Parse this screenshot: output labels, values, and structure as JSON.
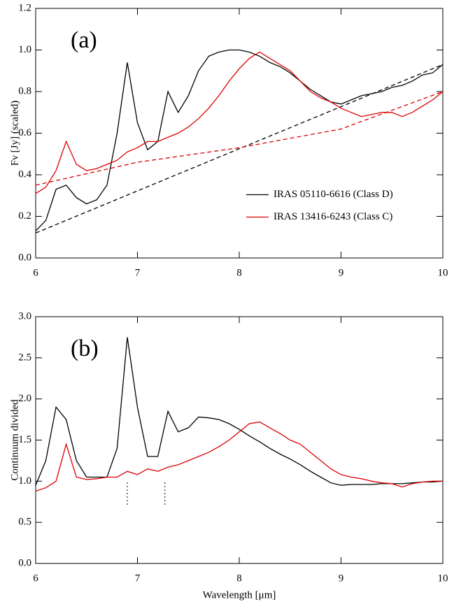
{
  "chart_data": [
    {
      "type": "line",
      "panel_label": "(a)",
      "ylabel": "Fν [Jy] (scaled)",
      "xlim": [
        6,
        10
      ],
      "xticks": [
        6,
        7,
        8,
        9,
        10
      ],
      "ylim": [
        0,
        1.2
      ],
      "yticks": [
        {
          "value": 0,
          "label": "0.0"
        },
        0.2,
        0.4,
        0.6,
        0.8,
        {
          "value": 1,
          "label": "1.0"
        },
        1.2
      ],
      "legend": "center right",
      "x": [
        6.0,
        6.1,
        6.2,
        6.3,
        6.4,
        6.5,
        6.6,
        6.7,
        6.8,
        6.9,
        7.0,
        7.1,
        7.2,
        7.3,
        7.4,
        7.5,
        7.6,
        7.7,
        7.8,
        7.9,
        8.0,
        8.1,
        8.2,
        8.3,
        8.4,
        8.5,
        8.6,
        8.7,
        8.8,
        8.9,
        9.0,
        9.1,
        9.2,
        9.3,
        9.4,
        9.5,
        9.6,
        9.7,
        9.8,
        9.9,
        10.0
      ],
      "series": [
        {
          "name": "IRAS 05110-6616 (Class D)",
          "color": "#000000",
          "values": [
            0.13,
            0.18,
            0.33,
            0.35,
            0.29,
            0.26,
            0.28,
            0.35,
            0.6,
            0.94,
            0.65,
            0.52,
            0.56,
            0.8,
            0.7,
            0.78,
            0.9,
            0.97,
            0.99,
            1.0,
            1.0,
            0.99,
            0.97,
            0.94,
            0.92,
            0.89,
            0.85,
            0.81,
            0.78,
            0.75,
            0.74,
            0.76,
            0.78,
            0.79,
            0.8,
            0.82,
            0.83,
            0.85,
            0.88,
            0.89,
            0.93
          ]
        },
        {
          "name": "IRAS 13416-6243 (Class C)",
          "color": "#dd0000",
          "values": [
            0.31,
            0.34,
            0.42,
            0.56,
            0.45,
            0.42,
            0.43,
            0.45,
            0.47,
            0.51,
            0.53,
            0.56,
            0.56,
            0.58,
            0.6,
            0.63,
            0.67,
            0.72,
            0.78,
            0.85,
            0.91,
            0.96,
            0.99,
            0.96,
            0.93,
            0.9,
            0.85,
            0.8,
            0.77,
            0.75,
            0.72,
            0.7,
            0.68,
            0.69,
            0.7,
            0.7,
            0.68,
            0.7,
            0.73,
            0.76,
            0.8
          ]
        }
      ],
      "continua": [
        {
          "color": "#000000",
          "dashed": true,
          "x": [
            6,
            10
          ],
          "values": [
            0.12,
            0.93
          ]
        },
        {
          "color": "#dd0000",
          "dashed": true,
          "x": [
            6,
            7,
            8,
            9,
            10
          ],
          "values": [
            0.35,
            0.46,
            0.53,
            0.62,
            0.8
          ]
        }
      ]
    },
    {
      "type": "line",
      "panel_label": "(b)",
      "ylabel": "Continuum divided",
      "xlabel": "Wavelength [μm]",
      "xlim": [
        6,
        10
      ],
      "xticks": [
        6,
        7,
        8,
        9,
        10
      ],
      "ylim": [
        0,
        3
      ],
      "yticks": [
        {
          "value": 0,
          "label": "0.0"
        },
        0.5,
        {
          "value": 1,
          "label": "1.0"
        },
        1.5,
        {
          "value": 2,
          "label": "2.0"
        },
        2.5,
        {
          "value": 3,
          "label": "3.0"
        }
      ],
      "x": [
        6.0,
        6.1,
        6.2,
        6.3,
        6.4,
        6.5,
        6.6,
        6.7,
        6.8,
        6.9,
        7.0,
        7.1,
        7.2,
        7.3,
        7.4,
        7.5,
        7.6,
        7.7,
        7.8,
        7.9,
        8.0,
        8.1,
        8.2,
        8.3,
        8.4,
        8.5,
        8.6,
        8.7,
        8.8,
        8.9,
        9.0,
        9.1,
        9.2,
        9.3,
        9.4,
        9.5,
        9.6,
        9.7,
        9.8,
        9.9,
        10.0
      ],
      "series": [
        {
          "color": "#000000",
          "values": [
            0.95,
            1.25,
            1.9,
            1.75,
            1.25,
            1.05,
            1.05,
            1.05,
            1.4,
            2.75,
            1.9,
            1.3,
            1.3,
            1.85,
            1.6,
            1.65,
            1.78,
            1.77,
            1.75,
            1.7,
            1.63,
            1.55,
            1.48,
            1.4,
            1.33,
            1.27,
            1.2,
            1.12,
            1.05,
            0.98,
            0.95,
            0.96,
            0.96,
            0.96,
            0.97,
            0.97,
            0.97,
            0.98,
            0.99,
            0.99,
            1.0
          ]
        },
        {
          "color": "#dd0000",
          "values": [
            0.88,
            0.92,
            1.0,
            1.45,
            1.05,
            1.02,
            1.03,
            1.05,
            1.05,
            1.12,
            1.08,
            1.15,
            1.12,
            1.17,
            1.2,
            1.25,
            1.3,
            1.35,
            1.42,
            1.5,
            1.6,
            1.7,
            1.72,
            1.65,
            1.58,
            1.5,
            1.45,
            1.35,
            1.25,
            1.15,
            1.08,
            1.05,
            1.03,
            1.0,
            0.98,
            0.97,
            0.93,
            0.97,
            0.99,
            1.0,
            1.0
          ]
        }
      ],
      "markers": [
        6.9,
        7.27
      ]
    }
  ]
}
